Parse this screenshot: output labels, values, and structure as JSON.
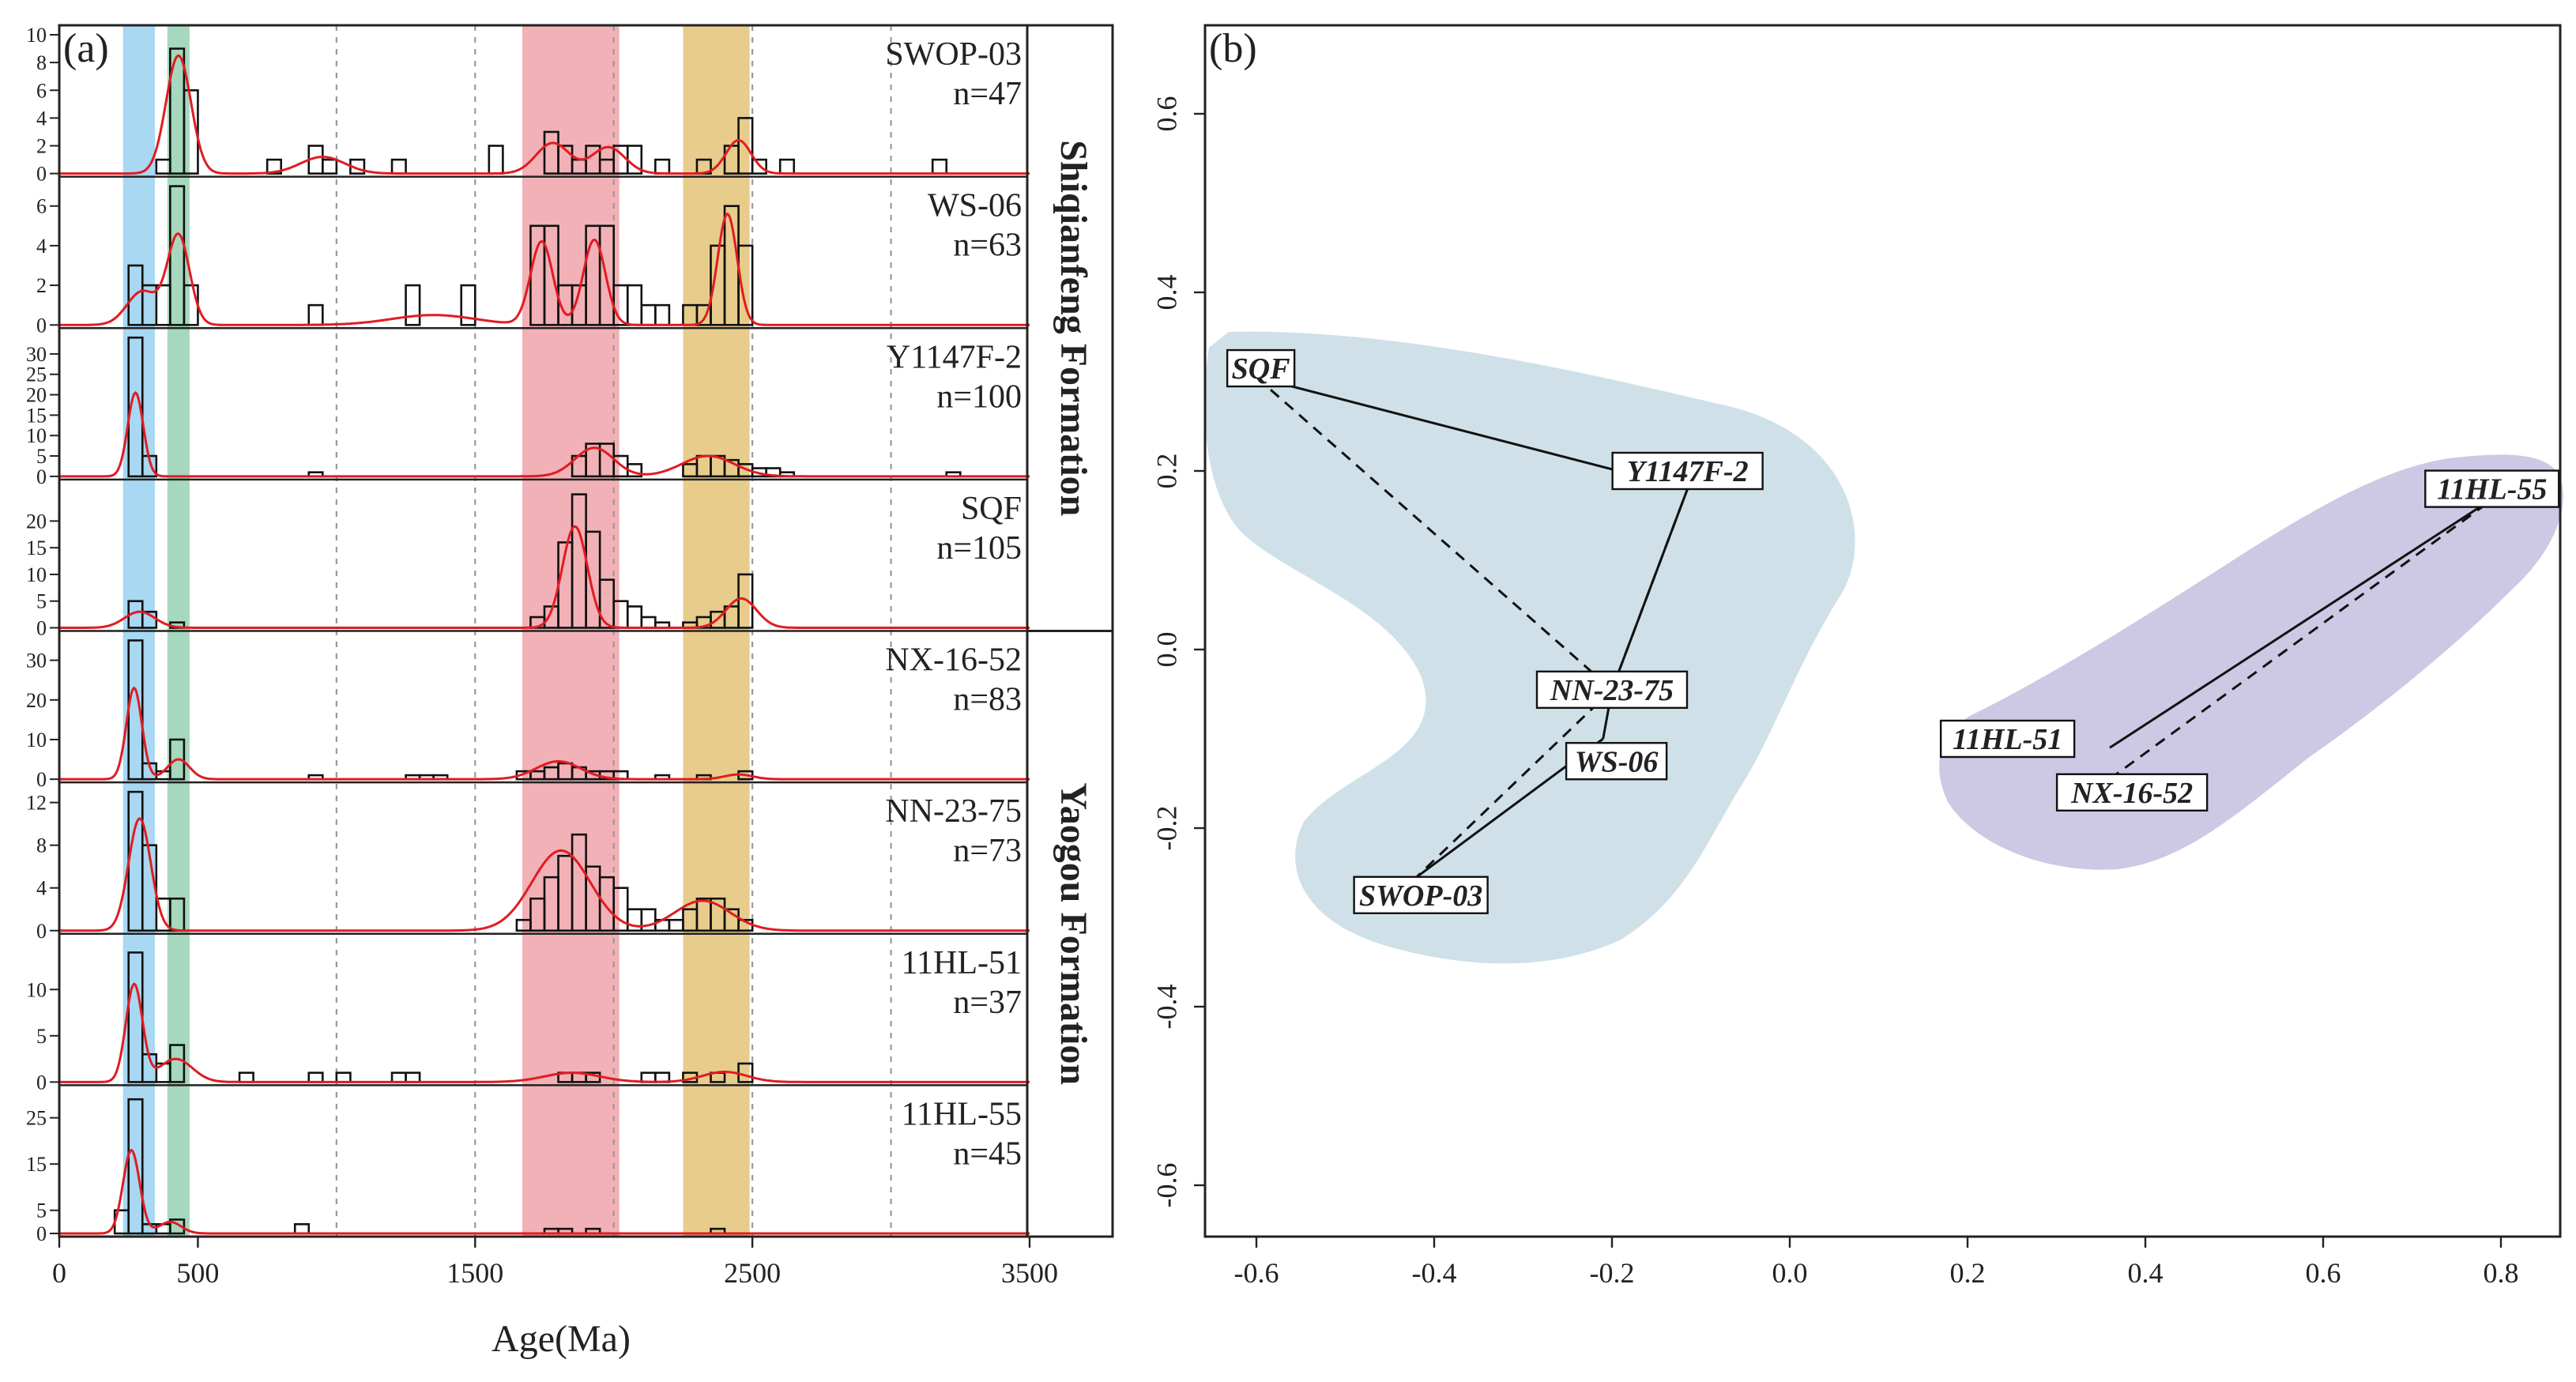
{
  "colors": {
    "band_blue": "#a8d8f2",
    "band_green": "#a6d8bd",
    "band_red": "#f2b1b6",
    "band_gold": "#e8cc8c",
    "kde_line": "#e11b22",
    "bar_stroke": "#111111",
    "region_blue": "#cfe0e8",
    "region_purple": "#cdc8e4"
  },
  "chart_data": [
    {
      "type": "histogram",
      "panel_label": "(a)",
      "xlabel": "Age(Ma)",
      "xlim": [
        0,
        3500
      ],
      "xticks": [
        0,
        500,
        1500,
        2500,
        3500
      ],
      "xtick_labels": [
        "0",
        "500",
        "1500",
        "2500",
        "3500"
      ],
      "dashed_gridlines_x": [
        1000,
        1500,
        2000,
        2500,
        3000
      ],
      "bin_width": 50,
      "shaded_bands": [
        {
          "color": "blue",
          "from": 230,
          "to": 345
        },
        {
          "color": "green",
          "from": 390,
          "to": 470
        },
        {
          "color": "red",
          "from": 1670,
          "to": 2020
        },
        {
          "color": "gold",
          "from": 2250,
          "to": 2490
        }
      ],
      "formation_labels": [
        {
          "text": "Shiqianfeng Formation",
          "samples": [
            "SWOP-03",
            "WS-06",
            "Y1147F-2",
            "SQF"
          ]
        },
        {
          "text": "Yaogou Formation",
          "samples": [
            "NX-16-52",
            "NN-23-75",
            "11HL-51",
            "11HL-55"
          ]
        }
      ],
      "series": [
        {
          "name": "SWOP-03",
          "n_label": "n=47",
          "yticks": [
            0,
            2,
            4,
            6,
            8,
            10
          ],
          "ymax": 10,
          "bins": [
            [
              350,
              1
            ],
            [
              400,
              9
            ],
            [
              450,
              6
            ],
            [
              750,
              1
            ],
            [
              900,
              2
            ],
            [
              950,
              1
            ],
            [
              1050,
              1
            ],
            [
              1200,
              1
            ],
            [
              1550,
              2
            ],
            [
              1750,
              3
            ],
            [
              1800,
              2
            ],
            [
              1850,
              1
            ],
            [
              1900,
              2
            ],
            [
              1950,
              1
            ],
            [
              2000,
              2
            ],
            [
              2050,
              2
            ],
            [
              2150,
              1
            ],
            [
              2300,
              1
            ],
            [
              2400,
              2
            ],
            [
              2450,
              4
            ],
            [
              2500,
              1
            ],
            [
              2600,
              1
            ],
            [
              3150,
              1
            ]
          ],
          "peaks": [
            [
              430,
              8.5,
              45
            ],
            [
              950,
              1.2,
              80
            ],
            [
              1780,
              2.2,
              60
            ],
            [
              1980,
              1.9,
              60
            ],
            [
              2450,
              2.4,
              45
            ]
          ]
        },
        {
          "name": "WS-06",
          "n_label": "n=63",
          "yticks": [
            0,
            2,
            4,
            6
          ],
          "ymax": 7,
          "bins": [
            [
              250,
              3
            ],
            [
              300,
              2
            ],
            [
              350,
              2
            ],
            [
              400,
              7
            ],
            [
              450,
              2
            ],
            [
              900,
              1
            ],
            [
              1250,
              2
            ],
            [
              1450,
              2
            ],
            [
              1700,
              5
            ],
            [
              1750,
              5
            ],
            [
              1800,
              2
            ],
            [
              1850,
              2
            ],
            [
              1900,
              5
            ],
            [
              1950,
              5
            ],
            [
              2000,
              2
            ],
            [
              2050,
              2
            ],
            [
              2100,
              1
            ],
            [
              2150,
              1
            ],
            [
              2250,
              1
            ],
            [
              2300,
              1
            ],
            [
              2350,
              4
            ],
            [
              2400,
              6
            ],
            [
              2450,
              4
            ]
          ],
          "peaks": [
            [
              300,
              1.7,
              55
            ],
            [
              430,
              4.5,
              40
            ],
            [
              1350,
              0.5,
              150
            ],
            [
              1740,
              4.2,
              40
            ],
            [
              1930,
              4.3,
              40
            ],
            [
              2410,
              5.6,
              35
            ]
          ]
        },
        {
          "name": "Y1147F-2",
          "n_label": "n=100",
          "yticks": [
            0,
            5,
            10,
            15,
            20,
            25,
            30
          ],
          "ymax": 34,
          "bins": [
            [
              250,
              34
            ],
            [
              300,
              5
            ],
            [
              900,
              1
            ],
            [
              1850,
              5
            ],
            [
              1900,
              8
            ],
            [
              1950,
              8
            ],
            [
              2000,
              5
            ],
            [
              2050,
              3
            ],
            [
              2250,
              3
            ],
            [
              2300,
              5
            ],
            [
              2350,
              5
            ],
            [
              2400,
              4
            ],
            [
              2450,
              3
            ],
            [
              2500,
              2
            ],
            [
              2550,
              2
            ],
            [
              2600,
              1
            ],
            [
              3200,
              1
            ]
          ],
          "peaks": [
            [
              275,
              20.5,
              28
            ],
            [
              1930,
              7,
              70
            ],
            [
              2340,
              5,
              95
            ]
          ]
        },
        {
          "name": "SQF",
          "n_label": "n=105",
          "yticks": [
            0,
            5,
            10,
            15,
            20
          ],
          "ymax": 26,
          "bins": [
            [
              250,
              5
            ],
            [
              300,
              3
            ],
            [
              400,
              1
            ],
            [
              1700,
              2
            ],
            [
              1750,
              4
            ],
            [
              1800,
              16
            ],
            [
              1850,
              25
            ],
            [
              1900,
              18
            ],
            [
              1950,
              9
            ],
            [
              2000,
              5
            ],
            [
              2050,
              4
            ],
            [
              2100,
              2
            ],
            [
              2150,
              1
            ],
            [
              2250,
              1
            ],
            [
              2300,
              2
            ],
            [
              2350,
              3
            ],
            [
              2400,
              4
            ],
            [
              2450,
              10
            ]
          ],
          "peaks": [
            [
              290,
              3,
              55
            ],
            [
              1860,
              19,
              45
            ],
            [
              2460,
              5.5,
              55
            ]
          ]
        },
        {
          "name": "NX-16-52",
          "n_label": "n=83",
          "yticks": [
            0,
            10,
            20,
            30
          ],
          "ymax": 35,
          "bins": [
            [
              250,
              35
            ],
            [
              300,
              4
            ],
            [
              350,
              2
            ],
            [
              400,
              10
            ],
            [
              900,
              1
            ],
            [
              1250,
              1
            ],
            [
              1300,
              1
            ],
            [
              1350,
              1
            ],
            [
              1650,
              2
            ],
            [
              1700,
              2
            ],
            [
              1750,
              3
            ],
            [
              1800,
              4
            ],
            [
              1850,
              3
            ],
            [
              1900,
              2
            ],
            [
              1950,
              2
            ],
            [
              2000,
              2
            ],
            [
              2150,
              1
            ],
            [
              2300,
              1
            ],
            [
              2450,
              2
            ]
          ],
          "peaks": [
            [
              270,
              23,
              28
            ],
            [
              430,
              5,
              40
            ],
            [
              1800,
              4.5,
              80
            ],
            [
              2450,
              1.2,
              50
            ]
          ]
        },
        {
          "name": "NN-23-75",
          "n_label": "n=73",
          "yticks": [
            0,
            4,
            8,
            12
          ],
          "ymax": 13,
          "bins": [
            [
              250,
              13
            ],
            [
              300,
              8
            ],
            [
              350,
              3
            ],
            [
              400,
              3
            ],
            [
              1650,
              1
            ],
            [
              1700,
              3
            ],
            [
              1750,
              5
            ],
            [
              1800,
              7
            ],
            [
              1850,
              9
            ],
            [
              1900,
              6
            ],
            [
              1950,
              5
            ],
            [
              2000,
              4
            ],
            [
              2050,
              2
            ],
            [
              2100,
              2
            ],
            [
              2150,
              1
            ],
            [
              2200,
              1
            ],
            [
              2250,
              2
            ],
            [
              2300,
              3
            ],
            [
              2350,
              3
            ],
            [
              2400,
              2
            ],
            [
              2450,
              1
            ]
          ],
          "peaks": [
            [
              290,
              10.5,
              40
            ],
            [
              1810,
              7.5,
              105
            ],
            [
              2320,
              2.8,
              100
            ]
          ]
        },
        {
          "name": "11HL-51",
          "n_label": "n=37",
          "yticks": [
            0,
            5,
            10
          ],
          "ymax": 15,
          "bins": [
            [
              250,
              14
            ],
            [
              300,
              3
            ],
            [
              350,
              2
            ],
            [
              400,
              4
            ],
            [
              650,
              1
            ],
            [
              900,
              1
            ],
            [
              1000,
              1
            ],
            [
              1200,
              1
            ],
            [
              1250,
              1
            ],
            [
              1800,
              1
            ],
            [
              1850,
              1
            ],
            [
              1900,
              1
            ],
            [
              2100,
              1
            ],
            [
              2150,
              1
            ],
            [
              2250,
              1
            ],
            [
              2350,
              1
            ],
            [
              2450,
              2
            ]
          ],
          "peaks": [
            [
              270,
              10.5,
              30
            ],
            [
              420,
              2.5,
              60
            ],
            [
              1850,
              1,
              100
            ],
            [
              2400,
              1.1,
              80
            ]
          ]
        },
        {
          "name": "11HL-55",
          "n_label": "n=45",
          "yticks": [
            0,
            5,
            15,
            25
          ],
          "ymax": 30,
          "bins": [
            [
              200,
              5
            ],
            [
              250,
              29
            ],
            [
              300,
              2
            ],
            [
              350,
              2
            ],
            [
              400,
              3
            ],
            [
              850,
              2
            ],
            [
              1750,
              1
            ],
            [
              1800,
              1
            ],
            [
              1900,
              1
            ],
            [
              2350,
              1
            ]
          ],
          "peaks": [
            [
              260,
              18,
              30
            ],
            [
              400,
              2.5,
              40
            ]
          ]
        }
      ]
    },
    {
      "type": "scatter",
      "panel_label": "(b)",
      "xlim": [
        -0.64,
        0.87
      ],
      "ylim": [
        -0.655,
        0.685
      ],
      "xticks": [
        -0.6,
        -0.4,
        -0.2,
        0.0,
        0.2,
        0.4,
        0.6,
        0.8
      ],
      "xtick_labels": [
        "-0.6",
        "-0.4",
        "-0.2",
        "0.0",
        "0.2",
        "0.4",
        "0.6",
        "0.8"
      ],
      "yticks": [
        -0.6,
        -0.4,
        -0.2,
        0.0,
        0.2,
        0.4,
        0.6
      ],
      "ytick_labels": [
        "-0.6",
        "-0.4",
        "-0.2",
        "0.0",
        "0.2",
        "0.4",
        "0.6"
      ],
      "points": [
        {
          "name": "SQF",
          "x": -0.6,
          "y": 0.305
        },
        {
          "name": "Y1147F-2",
          "x": -0.115,
          "y": 0.18
        },
        {
          "name": "NN-23-75",
          "x": -0.2,
          "y": -0.045
        },
        {
          "name": "WS-06",
          "x": -0.21,
          "y": -0.1
        },
        {
          "name": "SWOP-03",
          "x": -0.42,
          "y": -0.255
        },
        {
          "name": "11HL-55",
          "x": 0.8,
          "y": 0.175
        },
        {
          "name": "11HL-51",
          "x": 0.36,
          "y": -0.11
        },
        {
          "name": "NX-16-52",
          "x": 0.36,
          "y": -0.145
        }
      ],
      "solid_links": [
        [
          "SQF",
          "Y1147F-2"
        ],
        [
          "Y1147F-2",
          "NN-23-75"
        ],
        [
          "NN-23-75",
          "WS-06"
        ],
        [
          "WS-06",
          "SWOP-03"
        ],
        [
          "11HL-51",
          "11HL-55"
        ]
      ],
      "dashed_links": [
        [
          "SQF",
          "NN-23-75"
        ],
        [
          "NN-23-75",
          "Y1147F-2"
        ],
        [
          "NN-23-75",
          "SWOP-03"
        ],
        [
          "NX-16-52",
          "11HL-55"
        ]
      ],
      "labels": [
        {
          "name": "SQF",
          "x": -0.595,
          "y": 0.315
        },
        {
          "name": "Y1147F-2",
          "x": -0.115,
          "y": 0.2
        },
        {
          "name": "NN-23-75",
          "x": -0.2,
          "y": -0.045
        },
        {
          "name": "WS-06",
          "x": -0.195,
          "y": -0.125
        },
        {
          "name": "SWOP-03",
          "x": -0.415,
          "y": -0.275
        },
        {
          "name": "11HL-55",
          "x": 0.79,
          "y": 0.18
        },
        {
          "name": "11HL-51",
          "x": 0.245,
          "y": -0.1
        },
        {
          "name": "NX-16-52",
          "x": 0.385,
          "y": -0.16
        }
      ]
    }
  ]
}
